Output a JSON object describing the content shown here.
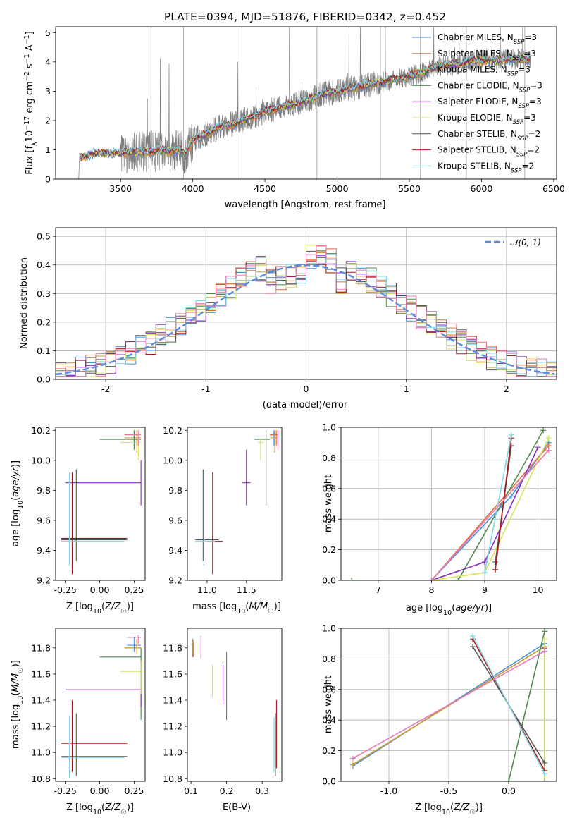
{
  "title": "PLATE=0394, MJD=51876, FIBERID=0342, z=0.452",
  "colors": {
    "Chabrier MILES": "#4a8fdc",
    "Salpeter MILES": "#e06a3c",
    "Kroupa MILES": "#c8a23a",
    "Chabrier ELODIE": "#4f8a4f",
    "Salpeter ELODIE": "#8a2bbf",
    "Kroupa ELODIE": "#d7e35a",
    "Chabrier STELIB": "#555555",
    "Salpeter STELIB": "#b01818",
    "Kroupa STELIB": "#7fd6e6",
    "pink": "#e87cb8",
    "data": "#7f7f7f",
    "gaussian": "#5b8bd9"
  },
  "legend_labels": [
    {
      "pre": "Chabrier MILES, N",
      "sub": "SSP",
      "post": "=3"
    },
    {
      "pre": "Salpeter MILES, N",
      "sub": "SSP",
      "post": "=3"
    },
    {
      "pre": "Kroupa MILES, N",
      "sub": "SSP",
      "post": "=3"
    },
    {
      "pre": "Chabrier ELODIE, N",
      "sub": "SSP",
      "post": "=3"
    },
    {
      "pre": "Salpeter ELODIE, N",
      "sub": "SSP",
      "post": "=3"
    },
    {
      "pre": "Kroupa ELODIE, N",
      "sub": "SSP",
      "post": "=3"
    },
    {
      "pre": "Chabrier STELIB, N",
      "sub": "SSP",
      "post": "=2"
    },
    {
      "pre": "Salpeter STELIB, N",
      "sub": "SSP",
      "post": "=2"
    },
    {
      "pre": "Kroupa STELIB, N",
      "sub": "SSP",
      "post": "=2"
    }
  ],
  "chart_data": [
    {
      "id": "spectrum",
      "type": "line",
      "xlabel": "wavelength [Angstrom, rest frame]",
      "ylabel": "Flux [f_λ 10^-17 erg cm^-2 s^-1 A^-1]",
      "xlim": [
        3050,
        6520
      ],
      "ylim": [
        0,
        5.2
      ],
      "xticks": [
        3500,
        4000,
        4500,
        5000,
        5500,
        6000,
        6500
      ],
      "yticks": [
        0,
        1,
        2,
        3,
        4,
        5
      ],
      "model_continuum": [
        [
          3210,
          0
        ],
        [
          3215,
          0.72
        ],
        [
          3300,
          0.86
        ],
        [
          3400,
          0.9
        ],
        [
          3500,
          0.9
        ],
        [
          3600,
          0.92
        ],
        [
          3700,
          0.95
        ],
        [
          3800,
          0.97
        ],
        [
          3900,
          0.98
        ],
        [
          3950,
          0.9
        ],
        [
          4000,
          1.35
        ],
        [
          4100,
          1.55
        ],
        [
          4200,
          1.8
        ],
        [
          4300,
          1.9
        ],
        [
          4400,
          2.1
        ],
        [
          4500,
          2.3
        ],
        [
          4600,
          2.45
        ],
        [
          4700,
          2.55
        ],
        [
          4800,
          2.7
        ],
        [
          4900,
          2.9
        ],
        [
          5000,
          3.0
        ],
        [
          5100,
          3.1
        ],
        [
          5200,
          3.2
        ],
        [
          5300,
          3.3
        ],
        [
          5400,
          3.4
        ],
        [
          5500,
          3.5
        ],
        [
          5600,
          3.65
        ],
        [
          5700,
          3.85
        ],
        [
          5800,
          3.9
        ],
        [
          5900,
          4.0
        ],
        [
          6000,
          4.05
        ],
        [
          6100,
          4.05
        ],
        [
          6200,
          4.1
        ],
        [
          6300,
          4.1
        ],
        [
          6340,
          4.1
        ]
      ],
      "noise_onset": 3500,
      "grid": false,
      "legend": "top-right"
    },
    {
      "id": "residuals",
      "type": "line",
      "xlabel": "(data-model)/error",
      "ylabel": "Normed distribution",
      "xlim": [
        -2.5,
        2.5
      ],
      "ylim": [
        0,
        0.53
      ],
      "xticks": [
        -2,
        -1,
        0,
        1,
        2
      ],
      "yticks": [
        0.0,
        0.1,
        0.2,
        0.3,
        0.4,
        0.5
      ],
      "gaussian_label": "𝒩(0, 1)",
      "grid": true,
      "legend": "top-right"
    },
    {
      "id": "age_vs_Z",
      "type": "scatter",
      "xlabel": "Z [log10(Z/Z☉)]",
      "ylabel": "age  [log10(age/yr)]",
      "xlim": [
        -0.32,
        0.33
      ],
      "ylim": [
        9.2,
        10.22
      ],
      "xticks": [
        -0.25,
        0.0,
        0.25
      ],
      "yticks": [
        9.2,
        9.4,
        9.6,
        9.8,
        10.0,
        10.2
      ],
      "points": [
        {
          "m": "Chabrier MILES",
          "x": 0.25,
          "y": 10.17,
          "xe": [
            0.2,
            0.3
          ],
          "ye": [
            10.1,
            10.2
          ]
        },
        {
          "m": "Salpeter MILES",
          "x": 0.27,
          "y": 10.17,
          "xe": [
            0.18,
            0.3
          ],
          "ye": [
            10.1,
            10.2
          ]
        },
        {
          "m": "Kroupa MILES",
          "x": 0.27,
          "y": 10.15,
          "xe": [
            0.18,
            0.3
          ],
          "ye": [
            10.05,
            10.2
          ]
        },
        {
          "m": "Chabrier ELODIE",
          "x": 0.25,
          "y": 10.14,
          "xe": [
            0.0,
            0.3
          ],
          "ye": [
            10.07,
            10.2
          ]
        },
        {
          "m": "Salpeter ELODIE",
          "x": 0.3,
          "y": 9.85,
          "xe": [
            -0.25,
            0.3
          ],
          "ye": [
            9.7,
            10.0
          ]
        },
        {
          "m": "Kroupa ELODIE",
          "x": 0.28,
          "y": 10.12,
          "xe": [
            0.15,
            0.3
          ],
          "ye": [
            10.0,
            10.17
          ]
        },
        {
          "m": "Chabrier STELIB",
          "x": -0.17,
          "y": 9.47,
          "xe": [
            -0.28,
            0.2
          ],
          "ye": [
            9.33,
            9.94
          ]
        },
        {
          "m": "Salpeter STELIB",
          "x": -0.2,
          "y": 9.48,
          "xe": [
            -0.28,
            0.2
          ],
          "ye": [
            9.24,
            9.92
          ]
        },
        {
          "m": "Kroupa STELIB",
          "x": -0.22,
          "y": 9.46,
          "xe": [
            -0.28,
            0.18
          ],
          "ye": [
            9.3,
            9.92
          ]
        },
        {
          "m": "pink",
          "x": 0.28,
          "y": 10.17,
          "xe": [
            0.2,
            0.3
          ],
          "ye": [
            10.1,
            10.2
          ]
        }
      ],
      "grid": false
    },
    {
      "id": "age_vs_mass",
      "type": "scatter",
      "xlabel": "mass [log10(M/M☉)]",
      "ylabel": "",
      "xlim": [
        10.75,
        11.95
      ],
      "ylim": [
        9.2,
        10.22
      ],
      "xticks": [
        11.0,
        11.5
      ],
      "yticks": [
        9.2,
        9.4,
        9.6,
        9.8,
        10.0,
        10.2
      ],
      "points": [
        {
          "m": "Chabrier MILES",
          "x": 11.85,
          "y": 10.17,
          "xe": [
            11.8,
            11.9
          ],
          "ye": [
            10.1,
            10.2
          ]
        },
        {
          "m": "Salpeter MILES",
          "x": 11.88,
          "y": 10.17,
          "xe": [
            11.8,
            11.9
          ],
          "ye": [
            10.1,
            10.2
          ]
        },
        {
          "m": "Kroupa MILES",
          "x": 11.86,
          "y": 10.15,
          "xe": [
            11.8,
            11.9
          ],
          "ye": [
            10.05,
            10.2
          ]
        },
        {
          "m": "Chabrier ELODIE",
          "x": 11.75,
          "y": 10.14,
          "xe": [
            11.6,
            11.8
          ],
          "ye": [
            9.7,
            10.2
          ]
        },
        {
          "m": "Salpeter ELODIE",
          "x": 11.5,
          "y": 9.85,
          "xe": [
            11.45,
            11.55
          ],
          "ye": [
            9.7,
            10.07
          ]
        },
        {
          "m": "Kroupa ELODIE",
          "x": 11.68,
          "y": 10.12,
          "xe": [
            11.65,
            11.72
          ],
          "ye": [
            10.0,
            10.15
          ]
        },
        {
          "m": "Chabrier STELIB",
          "x": 10.95,
          "y": 9.47,
          "xe": [
            10.85,
            11.15
          ],
          "ye": [
            9.33,
            9.94
          ]
        },
        {
          "m": "Salpeter STELIB",
          "x": 11.07,
          "y": 9.46,
          "xe": [
            11.0,
            11.2
          ],
          "ye": [
            9.24,
            9.92
          ]
        },
        {
          "m": "Kroupa STELIB",
          "x": 10.96,
          "y": 9.46,
          "xe": [
            10.85,
            11.1
          ],
          "ye": [
            9.3,
            9.92
          ]
        },
        {
          "m": "pink",
          "x": 11.9,
          "y": 10.15,
          "xe": [
            11.85,
            11.9
          ],
          "ye": [
            10.07,
            10.2
          ]
        }
      ],
      "grid": false
    },
    {
      "id": "mass_weight_vs_age",
      "type": "line",
      "xlabel": "age  [log10(age/yr)]",
      "ylabel": "mass weight",
      "xlim": [
        6.3,
        10.35
      ],
      "ylim": [
        0,
        1.0
      ],
      "xticks": [
        7,
        8,
        9,
        10
      ],
      "yticks": [
        0.0,
        0.2,
        0.4,
        0.6,
        0.8,
        1.0
      ],
      "series": [
        {
          "m": "Chabrier MILES",
          "x": [
            8.0,
            9.5,
            10.2
          ],
          "y": [
            0.0,
            0.55,
            0.9
          ]
        },
        {
          "m": "Salpeter MILES",
          "x": [
            8.0,
            10.2
          ],
          "y": [
            0.0,
            0.88
          ]
        },
        {
          "m": "Kroupa MILES",
          "x": [
            8.0,
            10.2
          ],
          "y": [
            0.0,
            0.85
          ]
        },
        {
          "m": "Chabrier ELODIE",
          "x": [
            6.5,
            8.5,
            10.1
          ],
          "y": [
            0.0,
            0.0,
            0.98
          ]
        },
        {
          "m": "Salpeter ELODIE",
          "x": [
            8.0,
            9.0,
            10.0
          ],
          "y": [
            0.0,
            0.12,
            0.87
          ]
        },
        {
          "m": "Kroupa ELODIE",
          "x": [
            8.0,
            9.0,
            10.2
          ],
          "y": [
            0.0,
            0.05,
            0.93
          ]
        },
        {
          "m": "Chabrier STELIB",
          "x": [
            9.2,
            9.5
          ],
          "y": [
            0.12,
            0.88
          ]
        },
        {
          "m": "Salpeter STELIB",
          "x": [
            9.2,
            9.5
          ],
          "y": [
            0.07,
            0.93
          ]
        },
        {
          "m": "Kroupa STELIB",
          "x": [
            9.0,
            9.5
          ],
          "y": [
            0.05,
            0.95
          ]
        },
        {
          "m": "pink",
          "x": [
            8.0,
            10.2
          ],
          "y": [
            0.0,
            0.85
          ]
        }
      ],
      "grid": true
    },
    {
      "id": "mass_vs_Z",
      "type": "scatter",
      "xlabel": "Z [log10(Z/Z☉)]",
      "ylabel": "mass [log10(M/M☉)]",
      "xlim": [
        -0.32,
        0.33
      ],
      "ylim": [
        10.78,
        11.95
      ],
      "xticks": [
        -0.25,
        0.0,
        0.25
      ],
      "yticks": [
        10.8,
        11.0,
        11.2,
        11.4,
        11.6,
        11.8
      ],
      "points": [
        {
          "m": "Chabrier MILES",
          "x": 0.25,
          "y": 11.82,
          "xe": [
            0.2,
            0.3
          ],
          "ye": [
            11.77,
            11.88
          ]
        },
        {
          "m": "Salpeter MILES",
          "x": 0.27,
          "y": 11.8,
          "xe": [
            0.18,
            0.3
          ],
          "ye": [
            11.75,
            11.87
          ]
        },
        {
          "m": "Kroupa MILES",
          "x": 0.27,
          "y": 11.8,
          "xe": [
            0.18,
            0.3
          ],
          "ye": [
            11.75,
            11.85
          ]
        },
        {
          "m": "Chabrier ELODIE",
          "x": 0.3,
          "y": 11.73,
          "xe": [
            0.0,
            0.3
          ],
          "ye": [
            11.25,
            11.8
          ]
        },
        {
          "m": "Salpeter ELODIE",
          "x": 0.3,
          "y": 11.48,
          "xe": [
            -0.25,
            0.3
          ],
          "ye": [
            11.35,
            11.7
          ]
        },
        {
          "m": "Kroupa ELODIE",
          "x": 0.3,
          "y": 11.62,
          "xe": [
            0.15,
            0.3
          ],
          "ye": [
            11.45,
            11.7
          ]
        },
        {
          "m": "Chabrier STELIB",
          "x": -0.17,
          "y": 10.97,
          "xe": [
            -0.28,
            0.2
          ],
          "ye": [
            10.82,
            11.3
          ]
        },
        {
          "m": "Salpeter STELIB",
          "x": -0.2,
          "y": 11.07,
          "xe": [
            -0.28,
            0.2
          ],
          "ye": [
            10.85,
            11.4
          ]
        },
        {
          "m": "Kroupa STELIB",
          "x": -0.22,
          "y": 10.96,
          "xe": [
            -0.28,
            0.18
          ],
          "ye": [
            10.8,
            11.28
          ]
        },
        {
          "m": "pink",
          "x": 0.28,
          "y": 11.88,
          "xe": [
            0.2,
            0.3
          ],
          "ye": [
            11.83,
            11.9
          ]
        }
      ],
      "grid": false
    },
    {
      "id": "mass_vs_ebv",
      "type": "scatter",
      "xlabel": "E(B-V)",
      "ylabel": "",
      "xlim": [
        0.09,
        0.355
      ],
      "ylim": [
        10.78,
        11.95
      ],
      "xticks": [
        0.1,
        0.2,
        0.3
      ],
      "yticks": [
        10.8,
        11.0,
        11.2,
        11.4,
        11.6,
        11.8
      ],
      "points": [
        {
          "m": "Chabrier MILES",
          "x": 0.105,
          "y": 11.8,
          "ye": [
            11.73,
            11.87
          ]
        },
        {
          "m": "Salpeter MILES",
          "x": 0.107,
          "y": 11.8,
          "ye": [
            11.73,
            11.85
          ]
        },
        {
          "m": "Kroupa MILES",
          "x": 0.106,
          "y": 11.8,
          "ye": [
            11.75,
            11.86
          ]
        },
        {
          "m": "Chabrier ELODIE",
          "x": 0.2,
          "y": 11.5,
          "ye": [
            11.25,
            11.77
          ]
        },
        {
          "m": "Salpeter ELODIE",
          "x": 0.19,
          "y": 11.52,
          "ye": [
            11.37,
            11.67
          ]
        },
        {
          "m": "Kroupa ELODIE",
          "x": 0.16,
          "y": 11.55,
          "ye": [
            11.42,
            11.67
          ]
        },
        {
          "m": "Chabrier STELIB",
          "x": 0.337,
          "y": 11.05,
          "ye": [
            10.82,
            11.3
          ]
        },
        {
          "m": "Salpeter STELIB",
          "x": 0.34,
          "y": 11.1,
          "ye": [
            10.88,
            11.4
          ]
        },
        {
          "m": "Kroupa STELIB",
          "x": 0.333,
          "y": 11.0,
          "ye": [
            10.85,
            11.27
          ]
        },
        {
          "m": "pink",
          "x": 0.128,
          "y": 11.8,
          "ye": [
            11.72,
            11.89
          ]
        }
      ],
      "grid": false
    },
    {
      "id": "mass_weight_vs_Z",
      "type": "line",
      "xlabel": "Z [log10(Z/Z☉)]",
      "ylabel": "mass weight",
      "xlim": [
        -1.4,
        0.4
      ],
      "ylim": [
        0,
        1.0
      ],
      "xticks": [
        -1.0,
        -0.5,
        0.0
      ],
      "yticks": [
        0.0,
        0.2,
        0.4,
        0.6,
        0.8,
        1.0
      ],
      "series": [
        {
          "m": "Chabrier MILES",
          "x": [
            -1.3,
            0.3
          ],
          "y": [
            0.1,
            0.9
          ]
        },
        {
          "m": "Salpeter MILES",
          "x": [
            -1.3,
            0.3
          ],
          "y": [
            0.11,
            0.88
          ]
        },
        {
          "m": "Kroupa MILES",
          "x": [
            -1.3,
            0.3
          ],
          "y": [
            0.11,
            0.88
          ]
        },
        {
          "m": "Chabrier ELODIE",
          "x": [
            0.0,
            0.3
          ],
          "y": [
            0.0,
            0.98
          ]
        },
        {
          "m": "Salpeter ELODIE",
          "x": [
            0.3,
            0.3
          ],
          "y": [
            0.0,
            0.87
          ]
        },
        {
          "m": "Kroupa ELODIE",
          "x": [
            0.3,
            0.3
          ],
          "y": [
            0.02,
            0.93
          ]
        },
        {
          "m": "Chabrier STELIB",
          "x": [
            -0.3,
            0.3
          ],
          "y": [
            0.88,
            0.12
          ]
        },
        {
          "m": "Salpeter STELIB",
          "x": [
            -0.3,
            0.3
          ],
          "y": [
            0.93,
            0.07
          ]
        },
        {
          "m": "Kroupa STELIB",
          "x": [
            -0.3,
            0.3
          ],
          "y": [
            0.95,
            0.05
          ]
        },
        {
          "m": "pink",
          "x": [
            -1.3,
            0.3
          ],
          "y": [
            0.15,
            0.85
          ]
        }
      ],
      "grid": true
    }
  ]
}
